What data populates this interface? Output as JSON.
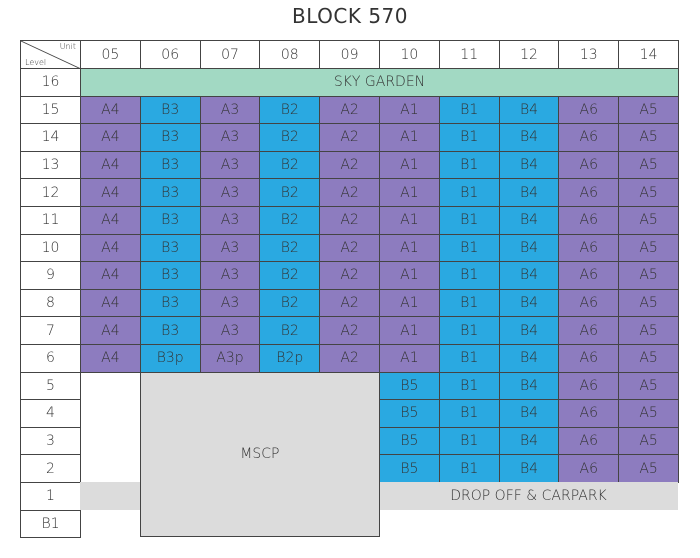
{
  "title": "BLOCK 570",
  "header": {
    "unit_label": "Unit",
    "level_label": "Level",
    "units": [
      "05",
      "06",
      "07",
      "08",
      "09",
      "10",
      "11",
      "12",
      "13",
      "14"
    ]
  },
  "sky_garden": {
    "level": "16",
    "label": "SKY GARDEN"
  },
  "unit_rows": [
    {
      "level": "15",
      "units": [
        "A4",
        "B3",
        "A3",
        "B2",
        "A2",
        "A1",
        "B1",
        "B4",
        "A6",
        "A5"
      ]
    },
    {
      "level": "14",
      "units": [
        "A4",
        "B3",
        "A3",
        "B2",
        "A2",
        "A1",
        "B1",
        "B4",
        "A6",
        "A5"
      ]
    },
    {
      "level": "13",
      "units": [
        "A4",
        "B3",
        "A3",
        "B2",
        "A2",
        "A1",
        "B1",
        "B4",
        "A6",
        "A5"
      ]
    },
    {
      "level": "12",
      "units": [
        "A4",
        "B3",
        "A3",
        "B2",
        "A2",
        "A1",
        "B1",
        "B4",
        "A6",
        "A5"
      ]
    },
    {
      "level": "11",
      "units": [
        "A4",
        "B3",
        "A3",
        "B2",
        "A2",
        "A1",
        "B1",
        "B4",
        "A6",
        "A5"
      ]
    },
    {
      "level": "10",
      "units": [
        "A4",
        "B3",
        "A3",
        "B2",
        "A2",
        "A1",
        "B1",
        "B4",
        "A6",
        "A5"
      ]
    },
    {
      "level": "9",
      "units": [
        "A4",
        "B3",
        "A3",
        "B2",
        "A2",
        "A1",
        "B1",
        "B4",
        "A6",
        "A5"
      ]
    },
    {
      "level": "8",
      "units": [
        "A4",
        "B3",
        "A3",
        "B2",
        "A2",
        "A1",
        "B1",
        "B4",
        "A6",
        "A5"
      ]
    },
    {
      "level": "7",
      "units": [
        "A4",
        "B3",
        "A3",
        "B2",
        "A2",
        "A1",
        "B1",
        "B4",
        "A6",
        "A5"
      ]
    },
    {
      "level": "6",
      "units": [
        "A4",
        "B3p",
        "A3p",
        "B2p",
        "A2",
        "A1",
        "B1",
        "B4",
        "A6",
        "A5"
      ]
    }
  ],
  "lower_rows": [
    {
      "level": "5",
      "units": [
        "B5",
        "B1",
        "B4",
        "A6",
        "A5"
      ]
    },
    {
      "level": "4",
      "units": [
        "B5",
        "B1",
        "B4",
        "A6",
        "A5"
      ]
    },
    {
      "level": "3",
      "units": [
        "B5",
        "B1",
        "B4",
        "A6",
        "A5"
      ]
    },
    {
      "level": "2",
      "units": [
        "B5",
        "B1",
        "B4",
        "A6",
        "A5"
      ]
    }
  ],
  "mscp": "MSCP",
  "drop_off": {
    "level": "1",
    "label": "DROP OFF & CARPARK"
  },
  "basement_level": "B1"
}
